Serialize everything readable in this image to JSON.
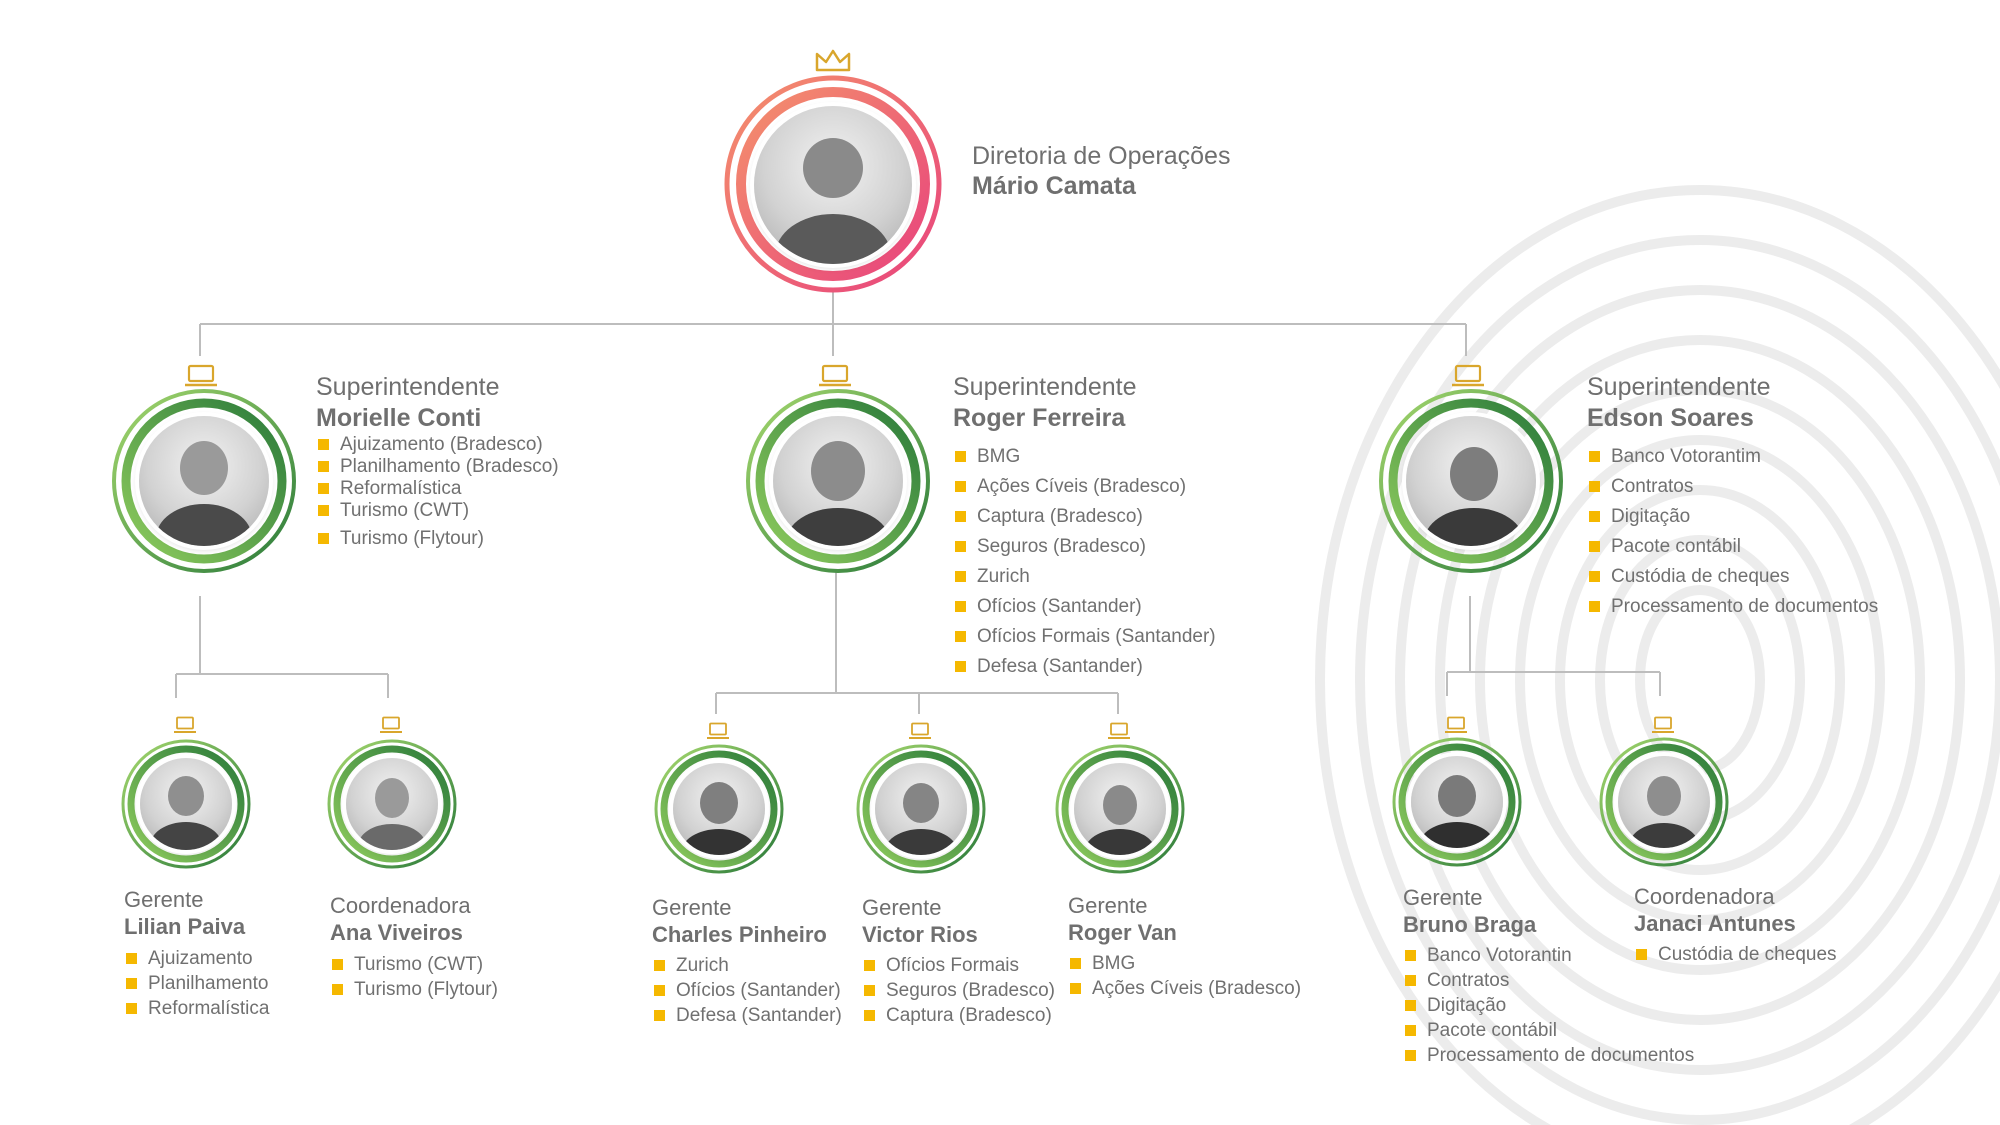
{
  "colors": {
    "accent_gold": "#d9a62c",
    "ring_green_light": "#9fd36b",
    "ring_green_dark": "#2a7a3a",
    "ring_pink_1": "#f48a6a",
    "ring_pink_2": "#e8437d",
    "bullet": "#f5b800",
    "connector": "#bdbdbd"
  },
  "director": {
    "role": "Diretoria de Operações",
    "name": "Mário Camata",
    "icon": "crown-icon"
  },
  "superintendents": [
    {
      "role": "Superintendente",
      "name": "Morielle Conti",
      "icon": "laptop-icon",
      "items": [
        "Ajuizamento (Bradesco)",
        "Planilhamento (Bradesco)",
        "Reformalística",
        "Turismo (CWT)",
        "Turismo (Flytour)"
      ],
      "reports": [
        {
          "role": "Gerente",
          "name": "Lilian Paiva",
          "items": [
            "Ajuizamento",
            "Planilhamento",
            "Reformalística"
          ]
        },
        {
          "role": "Coordenadora",
          "name": "Ana Viveiros",
          "items": [
            "Turismo (CWT)",
            "Turismo (Flytour)"
          ]
        }
      ]
    },
    {
      "role": "Superintendente",
      "name": "Roger Ferreira",
      "icon": "laptop-icon",
      "items": [
        "BMG",
        "Ações Cíveis (Bradesco)",
        "Captura (Bradesco)",
        "Seguros (Bradesco)",
        "Zurich",
        "Ofícios (Santander)",
        "Ofícios Formais (Santander)",
        "Defesa (Santander)"
      ],
      "reports": [
        {
          "role": "Gerente",
          "name": "Charles Pinheiro",
          "items": [
            "Zurich",
            "Ofícios (Santander)",
            "Defesa (Santander)"
          ]
        },
        {
          "role": "Gerente",
          "name": "Victor Rios",
          "items": [
            "Ofícios Formais",
            "Seguros (Bradesco)",
            "Captura (Bradesco)"
          ]
        },
        {
          "role": "Gerente",
          "name": "Roger Van",
          "items": [
            "BMG",
            "Ações Cíveis (Bradesco)"
          ]
        }
      ]
    },
    {
      "role": "Superintendente",
      "name": "Edson Soares",
      "icon": "laptop-icon",
      "items": [
        "Banco Votorantim",
        "Contratos",
        "Digitação",
        "Pacote contábil",
        "Custódia de cheques",
        "Processamento de documentos"
      ],
      "reports": [
        {
          "role": "Gerente",
          "name": "Bruno Braga",
          "items": [
            "Banco Votorantin",
            "Contratos",
            "Digitação",
            "Pacote contábil",
            "Processamento de documentos"
          ]
        },
        {
          "role": "Coordenadora",
          "name": "Janaci Antunes",
          "items": [
            "Custódia de cheques"
          ]
        }
      ]
    }
  ]
}
